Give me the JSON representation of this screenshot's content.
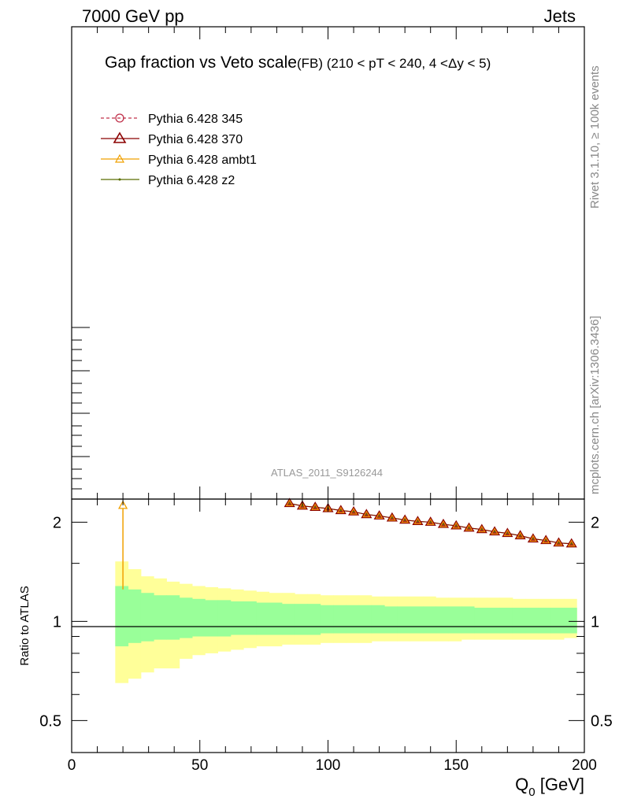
{
  "header": {
    "left": "7000 GeV pp",
    "right": "Jets"
  },
  "side_labels": {
    "rivet": "Rivet 3.1.10, ≥ 100k events",
    "mcplots": "mcplots.cern.ch [arXiv:1306.3436]"
  },
  "chart_data": {
    "type": "line",
    "title_main": "Gap fraction vs Veto scale",
    "title_sub": "(FB) (210 < pT < 240, 4 <Δy < 5)",
    "analysis_label": "ATLAS_2011_S9126244",
    "xlabel_main": "Q",
    "xlabel_sub": "0",
    "xlabel_unit": " [GeV]",
    "ylabel_ratio": "Ratio to ATLAS",
    "xlim": [
      0,
      200
    ],
    "ratio_ylim": [
      0.4,
      2.35
    ],
    "ratio_log_scale": true,
    "x_ticks": [
      0,
      50,
      100,
      150,
      200
    ],
    "x_tick_labels": [
      "0",
      "50",
      "100",
      "150",
      "200"
    ],
    "ratio_y_ticks": [
      0.5,
      1,
      2
    ],
    "ratio_y_tick_labels": [
      "0.5",
      "1",
      "2"
    ],
    "legend_position": "top-left",
    "legend": [
      {
        "label": "Pythia 6.428 345",
        "color": "#c0304a",
        "marker": "circle-open",
        "dashed": true
      },
      {
        "label": "Pythia 6.428 370",
        "color": "#8b0000",
        "marker": "triangle-filled",
        "dashed": false
      },
      {
        "label": "Pythia 6.428 ambt1",
        "color": "#f0a000",
        "marker": "triangle-open",
        "dashed": false
      },
      {
        "label": "Pythia 6.428 z2",
        "color": "#5a6e00",
        "marker": "dot",
        "dashed": false
      }
    ],
    "bands": {
      "edges": [
        17,
        22,
        27,
        32,
        37,
        42,
        47,
        52,
        57,
        62,
        67,
        72,
        77,
        82,
        87,
        92,
        97,
        102,
        107,
        112,
        117,
        122,
        127,
        132,
        137,
        142,
        147,
        152,
        157,
        162,
        167,
        172,
        177,
        182,
        187,
        192,
        197
      ],
      "inner_up": [
        1.28,
        1.25,
        1.22,
        1.2,
        1.2,
        1.18,
        1.17,
        1.16,
        1.16,
        1.15,
        1.15,
        1.14,
        1.14,
        1.13,
        1.13,
        1.13,
        1.12,
        1.12,
        1.12,
        1.12,
        1.12,
        1.11,
        1.11,
        1.11,
        1.11,
        1.11,
        1.11,
        1.11,
        1.1,
        1.1,
        1.1,
        1.1,
        1.1,
        1.1,
        1.1,
        1.1
      ],
      "inner_down": [
        0.84,
        0.86,
        0.87,
        0.88,
        0.88,
        0.89,
        0.9,
        0.9,
        0.9,
        0.91,
        0.91,
        0.91,
        0.91,
        0.91,
        0.91,
        0.91,
        0.92,
        0.92,
        0.92,
        0.92,
        0.92,
        0.92,
        0.92,
        0.92,
        0.92,
        0.92,
        0.92,
        0.92,
        0.92,
        0.92,
        0.92,
        0.92,
        0.92,
        0.92,
        0.92,
        0.92
      ],
      "outer_up": [
        1.52,
        1.44,
        1.37,
        1.35,
        1.32,
        1.3,
        1.28,
        1.27,
        1.26,
        1.25,
        1.24,
        1.23,
        1.22,
        1.22,
        1.21,
        1.21,
        1.2,
        1.2,
        1.2,
        1.2,
        1.19,
        1.19,
        1.19,
        1.19,
        1.19,
        1.18,
        1.18,
        1.18,
        1.18,
        1.18,
        1.18,
        1.17,
        1.17,
        1.17,
        1.17,
        1.17
      ],
      "outer_down": [
        0.65,
        0.67,
        0.7,
        0.72,
        0.72,
        0.77,
        0.79,
        0.8,
        0.81,
        0.82,
        0.83,
        0.84,
        0.84,
        0.85,
        0.85,
        0.85,
        0.86,
        0.86,
        0.86,
        0.86,
        0.87,
        0.87,
        0.87,
        0.87,
        0.87,
        0.87,
        0.87,
        0.88,
        0.88,
        0.88,
        0.88,
        0.88,
        0.88,
        0.88,
        0.88,
        0.89
      ],
      "inner_color": "#99ff99",
      "outer_color": "#ffff99"
    },
    "series": [
      {
        "name": "Pythia 6.428 ambt1",
        "color": "#f0a000",
        "x": [
          20
        ],
        "values": [
          2.25
        ],
        "err_low": [
          1.25
        ],
        "note_points_outside_upper_range": "remaining bins above plotted range"
      },
      {
        "name": "Pythia 6.428 370",
        "color": "#8b0000",
        "x": [
          85,
          90,
          95,
          100,
          105,
          110,
          115,
          120,
          125,
          130,
          135,
          140,
          145,
          150,
          155,
          160,
          165,
          170,
          175,
          180,
          185,
          190,
          195
        ],
        "values": [
          2.28,
          2.24,
          2.22,
          2.2,
          2.17,
          2.15,
          2.11,
          2.09,
          2.06,
          2.03,
          2.01,
          2.0,
          1.97,
          1.95,
          1.92,
          1.9,
          1.87,
          1.85,
          1.82,
          1.78,
          1.76,
          1.73,
          1.72
        ]
      }
    ]
  }
}
